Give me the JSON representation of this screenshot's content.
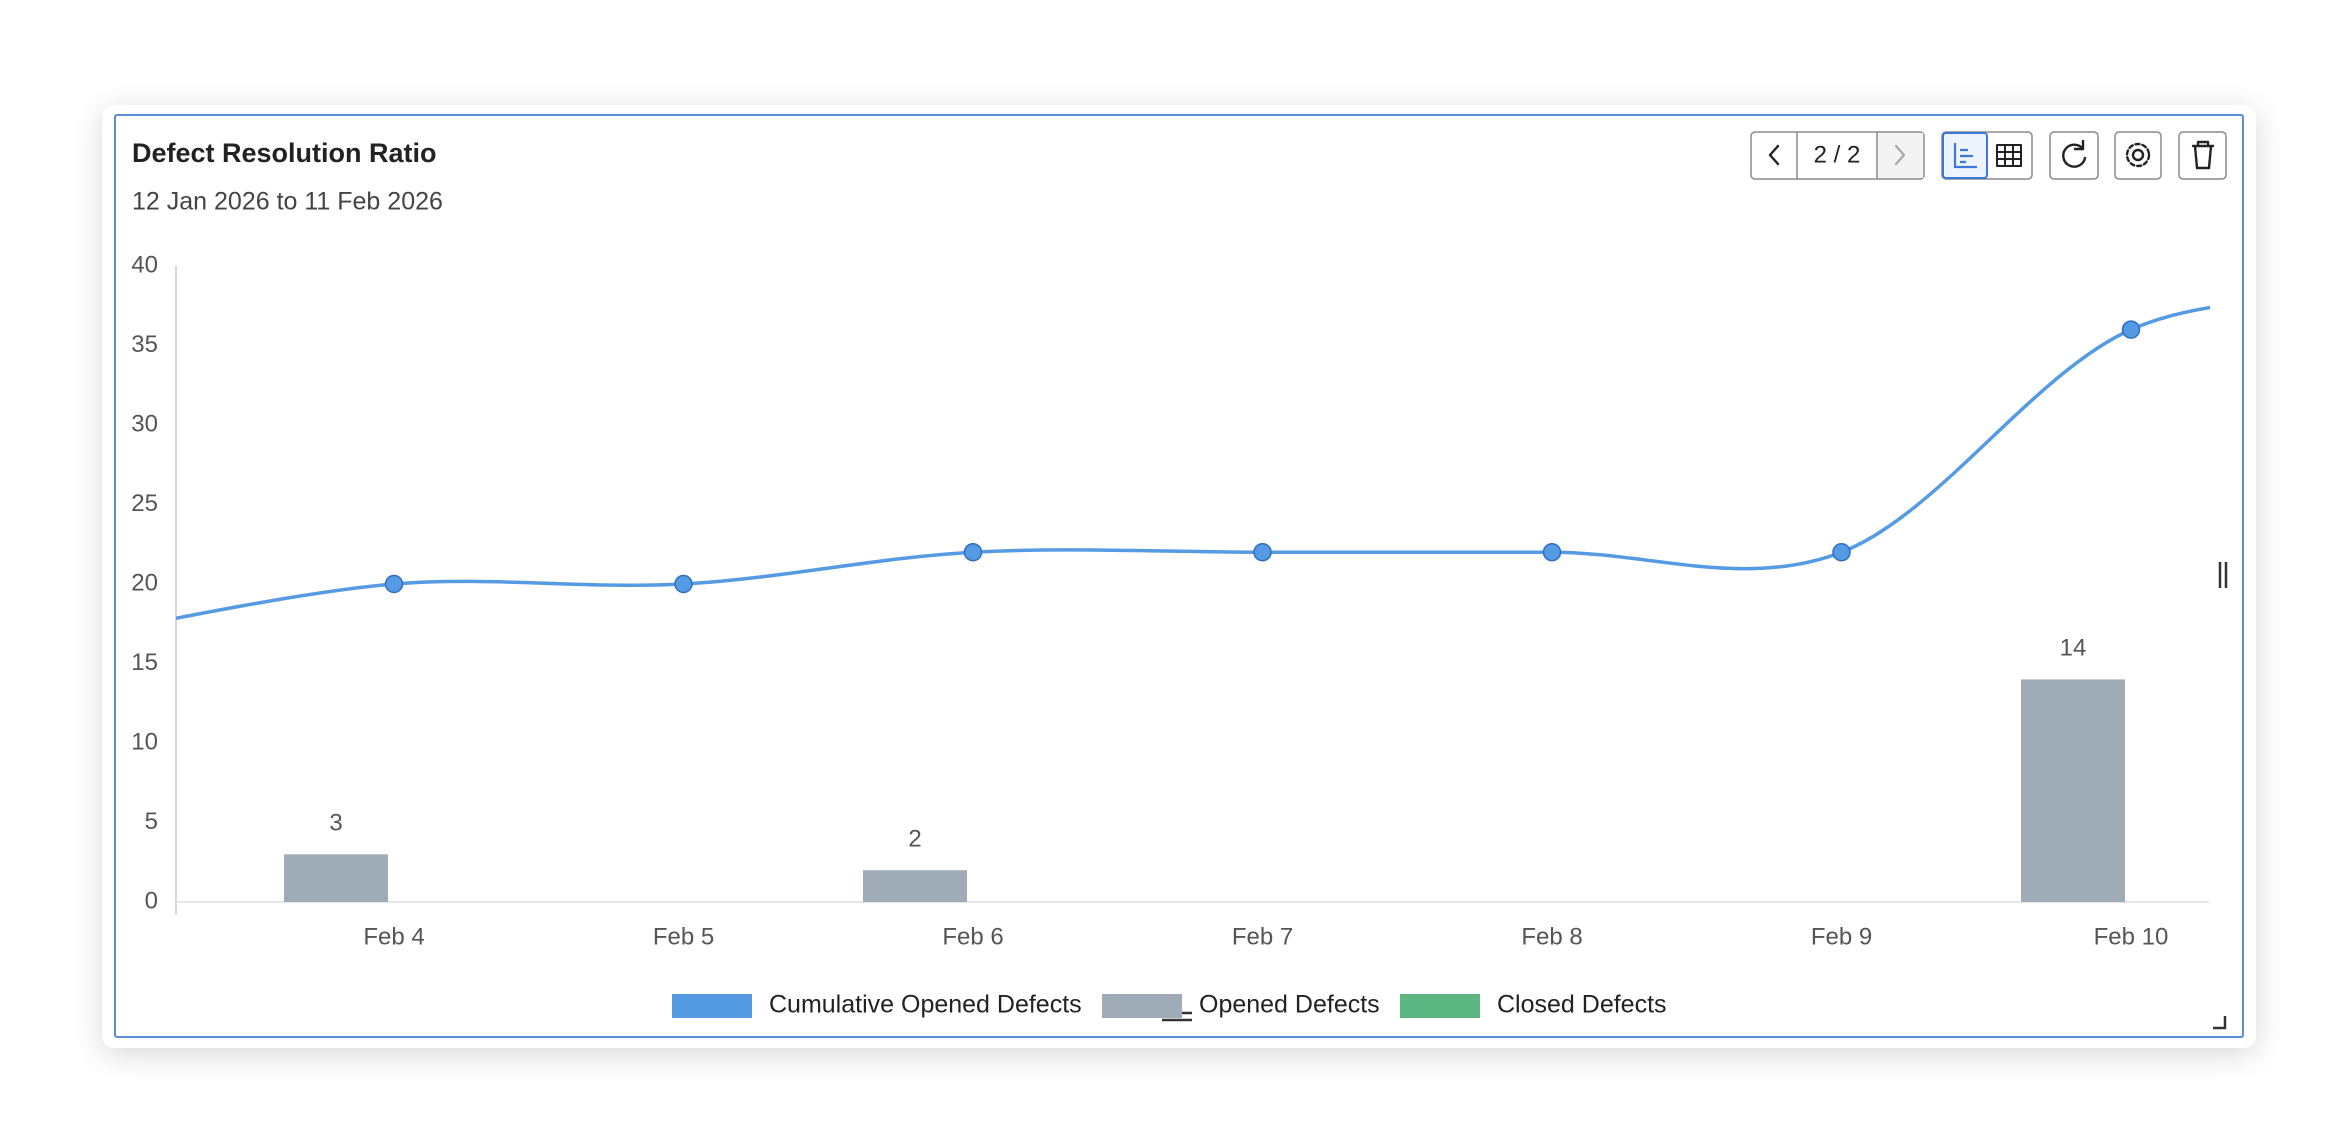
{
  "header": {
    "pager": "2 / 2"
  },
  "chart_data": {
    "type": "combo",
    "title": "Defect Resolution Ratio",
    "subtitle": "12 Jan 2026 to 11 Feb 2026",
    "categories": [
      null,
      "Feb 4",
      "Feb 5",
      "Feb 6",
      "Feb 7",
      "Feb 8",
      "Feb 9",
      "Feb 10",
      null
    ],
    "series": [
      {
        "name": "Cumulative Opened Defects",
        "color": "#559be3",
        "type": "line",
        "values": [
          17,
          20,
          20,
          22,
          22,
          22,
          22,
          36,
          38
        ]
      },
      {
        "name": "Opened Defects",
        "color": "#a0abb8",
        "type": "bar",
        "values": [
          null,
          3,
          0,
          2,
          0,
          0,
          0,
          14,
          null
        ]
      },
      {
        "name": "Closed Defects",
        "color": "#5cb682",
        "type": "bar",
        "values": [
          null,
          0,
          0,
          0,
          0,
          0,
          0,
          0,
          null
        ]
      }
    ],
    "ylim": [
      0,
      40
    ],
    "yticks": [
      0,
      5,
      10,
      15,
      20,
      25,
      30,
      35,
      40
    ],
    "grid": false
  }
}
